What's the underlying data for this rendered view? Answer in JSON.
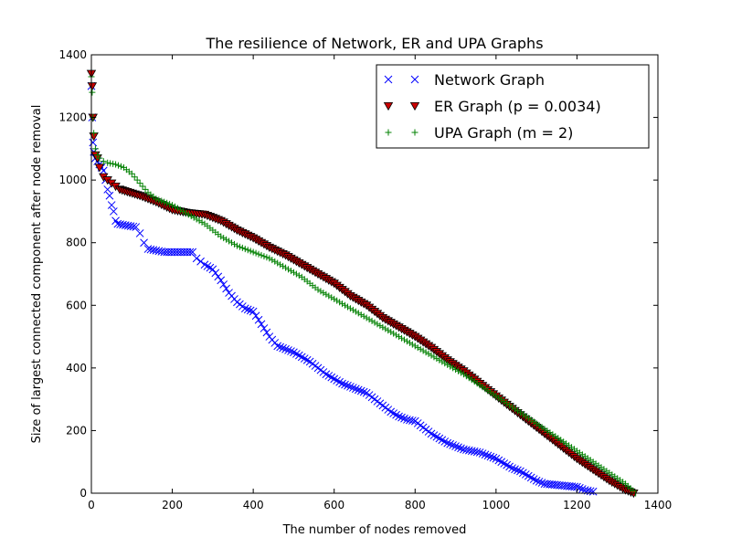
{
  "chart_data": {
    "type": "scatter",
    "title": "The resilience of Network, ER and UPA Graphs",
    "xlabel": "The number of nodes removed",
    "ylabel": "Size of largest connected component after node removal",
    "xlim": [
      0,
      1400
    ],
    "ylim": [
      0,
      1400
    ],
    "xticks": [
      0,
      200,
      400,
      600,
      800,
      1000,
      1200,
      1400
    ],
    "yticks": [
      0,
      200,
      400,
      600,
      800,
      1000,
      1200,
      1400
    ],
    "grid": false,
    "legend_position": "top-right",
    "series": [
      {
        "name": "Network Graph",
        "marker": "x",
        "color": "#0000ff",
        "points": [
          [
            0,
            1300
          ],
          [
            2,
            1200
          ],
          [
            4,
            1120
          ],
          [
            6,
            1090
          ],
          [
            10,
            1070
          ],
          [
            15,
            1060
          ],
          [
            20,
            1050
          ],
          [
            25,
            1040
          ],
          [
            30,
            1030
          ],
          [
            35,
            1000
          ],
          [
            40,
            970
          ],
          [
            45,
            950
          ],
          [
            50,
            920
          ],
          [
            55,
            900
          ],
          [
            60,
            870
          ],
          [
            65,
            860
          ],
          [
            110,
            850
          ],
          [
            120,
            830
          ],
          [
            130,
            800
          ],
          [
            140,
            780
          ],
          [
            180,
            770
          ],
          [
            250,
            770
          ],
          [
            260,
            750
          ],
          [
            270,
            740
          ],
          [
            280,
            730
          ],
          [
            300,
            715
          ],
          [
            320,
            680
          ],
          [
            340,
            640
          ],
          [
            360,
            610
          ],
          [
            380,
            590
          ],
          [
            400,
            580
          ],
          [
            420,
            540
          ],
          [
            440,
            500
          ],
          [
            460,
            470
          ],
          [
            480,
            460
          ],
          [
            500,
            450
          ],
          [
            520,
            435
          ],
          [
            540,
            420
          ],
          [
            560,
            400
          ],
          [
            580,
            380
          ],
          [
            600,
            365
          ],
          [
            620,
            350
          ],
          [
            640,
            340
          ],
          [
            660,
            330
          ],
          [
            680,
            320
          ],
          [
            700,
            300
          ],
          [
            720,
            280
          ],
          [
            740,
            260
          ],
          [
            760,
            245
          ],
          [
            780,
            235
          ],
          [
            800,
            230
          ],
          [
            820,
            210
          ],
          [
            840,
            190
          ],
          [
            860,
            175
          ],
          [
            880,
            160
          ],
          [
            900,
            150
          ],
          [
            920,
            140
          ],
          [
            960,
            130
          ],
          [
            1000,
            110
          ],
          [
            1040,
            80
          ],
          [
            1060,
            70
          ],
          [
            1080,
            55
          ],
          [
            1100,
            40
          ],
          [
            1120,
            30
          ],
          [
            1200,
            20
          ],
          [
            1220,
            10
          ],
          [
            1240,
            5
          ]
        ]
      },
      {
        "name": "ER Graph (p = 0.0034)",
        "marker": "triangle-down",
        "color": "#cc0000",
        "points": [
          [
            0,
            1340
          ],
          [
            2,
            1300
          ],
          [
            4,
            1200
          ],
          [
            6,
            1140
          ],
          [
            10,
            1080
          ],
          [
            15,
            1070
          ],
          [
            20,
            1040
          ],
          [
            30,
            1010
          ],
          [
            40,
            1000
          ],
          [
            50,
            990
          ],
          [
            60,
            980
          ],
          [
            70,
            970
          ],
          [
            120,
            950
          ],
          [
            160,
            930
          ],
          [
            200,
            905
          ],
          [
            240,
            895
          ],
          [
            280,
            890
          ],
          [
            320,
            870
          ],
          [
            360,
            840
          ],
          [
            400,
            815
          ],
          [
            440,
            785
          ],
          [
            480,
            760
          ],
          [
            520,
            730
          ],
          [
            560,
            700
          ],
          [
            600,
            670
          ],
          [
            640,
            630
          ],
          [
            680,
            600
          ],
          [
            720,
            560
          ],
          [
            760,
            530
          ],
          [
            800,
            500
          ],
          [
            840,
            465
          ],
          [
            880,
            425
          ],
          [
            920,
            390
          ],
          [
            960,
            350
          ],
          [
            1000,
            310
          ],
          [
            1040,
            270
          ],
          [
            1080,
            230
          ],
          [
            1120,
            190
          ],
          [
            1160,
            150
          ],
          [
            1200,
            110
          ],
          [
            1240,
            75
          ],
          [
            1280,
            40
          ],
          [
            1320,
            10
          ],
          [
            1340,
            0
          ]
        ]
      },
      {
        "name": "UPA Graph (m = 2)",
        "marker": "plus",
        "color": "#008000",
        "points": [
          [
            0,
            1330
          ],
          [
            2,
            1280
          ],
          [
            4,
            1200
          ],
          [
            6,
            1150
          ],
          [
            10,
            1100
          ],
          [
            15,
            1080
          ],
          [
            20,
            1070
          ],
          [
            30,
            1060
          ],
          [
            40,
            1055
          ],
          [
            60,
            1050
          ],
          [
            80,
            1040
          ],
          [
            100,
            1020
          ],
          [
            120,
            990
          ],
          [
            140,
            960
          ],
          [
            160,
            940
          ],
          [
            200,
            920
          ],
          [
            240,
            890
          ],
          [
            280,
            860
          ],
          [
            320,
            820
          ],
          [
            360,
            790
          ],
          [
            400,
            770
          ],
          [
            440,
            750
          ],
          [
            480,
            720
          ],
          [
            520,
            690
          ],
          [
            560,
            650
          ],
          [
            600,
            620
          ],
          [
            640,
            590
          ],
          [
            680,
            560
          ],
          [
            720,
            530
          ],
          [
            760,
            500
          ],
          [
            800,
            470
          ],
          [
            840,
            440
          ],
          [
            880,
            410
          ],
          [
            920,
            380
          ],
          [
            960,
            345
          ],
          [
            1000,
            310
          ],
          [
            1040,
            275
          ],
          [
            1080,
            240
          ],
          [
            1120,
            205
          ],
          [
            1160,
            170
          ],
          [
            1200,
            135
          ],
          [
            1240,
            100
          ],
          [
            1280,
            65
          ],
          [
            1320,
            30
          ],
          [
            1345,
            0
          ]
        ]
      }
    ]
  }
}
